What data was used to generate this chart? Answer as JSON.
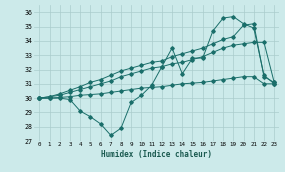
{
  "xlabel": "Humidex (Indice chaleur)",
  "background_color": "#cceaea",
  "grid_color": "#aacccc",
  "line_color": "#1a6e6a",
  "xlim": [
    -0.5,
    23.5
  ],
  "ylim": [
    27,
    36.5
  ],
  "yticks": [
    27,
    28,
    29,
    30,
    31,
    32,
    33,
    34,
    35,
    36
  ],
  "xticks": [
    0,
    1,
    2,
    3,
    4,
    5,
    6,
    7,
    8,
    9,
    10,
    11,
    12,
    13,
    14,
    15,
    16,
    17,
    18,
    19,
    20,
    21,
    22,
    23
  ],
  "series1_x": [
    0,
    1,
    2,
    3,
    4,
    5,
    6,
    7,
    8,
    9,
    10,
    11,
    12,
    13,
    14,
    15,
    16,
    17,
    18,
    19,
    20,
    21,
    22,
    23
  ],
  "series1_y": [
    30.0,
    30.0,
    30.0,
    29.9,
    29.1,
    28.7,
    28.2,
    27.4,
    27.9,
    29.7,
    30.2,
    30.9,
    32.2,
    33.5,
    31.7,
    32.8,
    32.8,
    34.7,
    35.6,
    35.7,
    35.2,
    34.9,
    31.6,
    31.0
  ],
  "series2_x": [
    0,
    1,
    2,
    3,
    4,
    5,
    6,
    7,
    8,
    9,
    10,
    11,
    12,
    13,
    14,
    15,
    16,
    17,
    18,
    19,
    20,
    21,
    22,
    23
  ],
  "series2_y": [
    30.0,
    30.0,
    30.05,
    30.1,
    30.2,
    30.25,
    30.3,
    30.4,
    30.5,
    30.6,
    30.7,
    30.75,
    30.8,
    30.9,
    31.0,
    31.05,
    31.1,
    31.2,
    31.3,
    31.4,
    31.5,
    31.5,
    31.0,
    31.0
  ],
  "series3_x": [
    0,
    1,
    2,
    3,
    4,
    5,
    6,
    7,
    8,
    9,
    10,
    11,
    12,
    13,
    14,
    15,
    16,
    17,
    18,
    19,
    20,
    21,
    22,
    23
  ],
  "series3_y": [
    30.0,
    30.1,
    30.2,
    30.4,
    30.6,
    30.8,
    31.0,
    31.2,
    31.5,
    31.7,
    31.9,
    32.1,
    32.2,
    32.4,
    32.5,
    32.7,
    32.9,
    33.2,
    33.5,
    33.7,
    33.8,
    33.9,
    33.9,
    31.1
  ],
  "series4_x": [
    0,
    1,
    2,
    3,
    4,
    5,
    6,
    7,
    8,
    9,
    10,
    11,
    12,
    13,
    14,
    15,
    16,
    17,
    18,
    19,
    20,
    21,
    22,
    23
  ],
  "series4_y": [
    30.0,
    30.1,
    30.3,
    30.55,
    30.8,
    31.1,
    31.3,
    31.6,
    31.9,
    32.1,
    32.3,
    32.5,
    32.6,
    32.9,
    33.1,
    33.3,
    33.5,
    33.8,
    34.1,
    34.3,
    35.1,
    35.2,
    31.5,
    31.1
  ]
}
